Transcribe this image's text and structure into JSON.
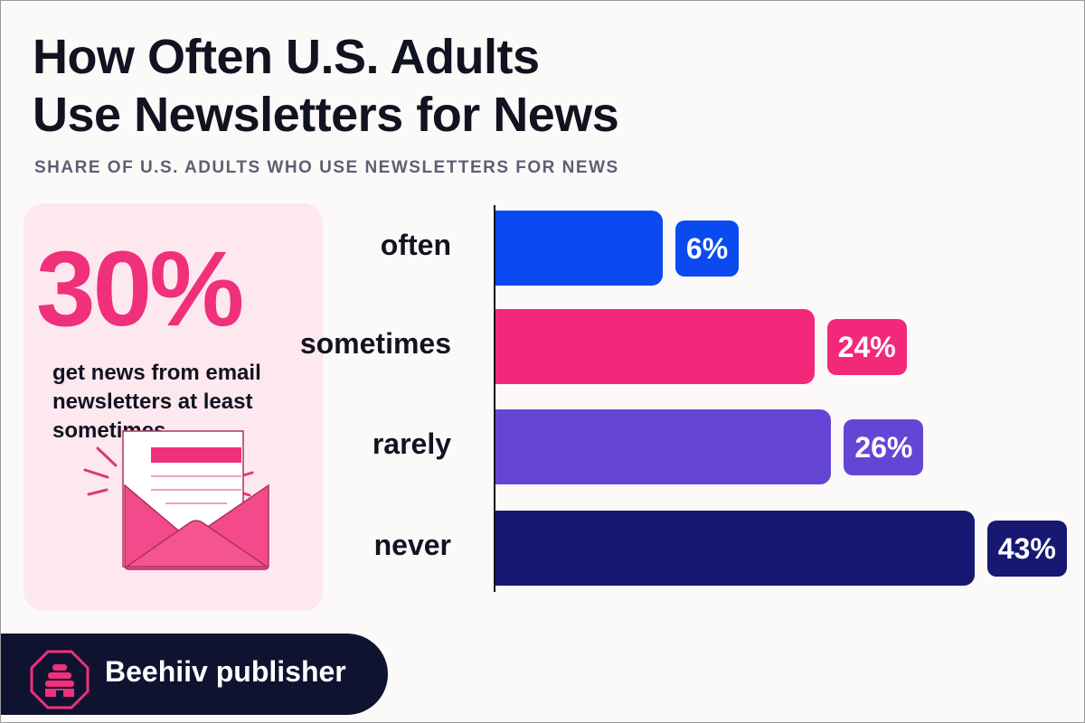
{
  "title_lines": [
    "How Often U.S. Adults",
    "Use Newsletters for News"
  ],
  "subtitle": "SHARE OF U.S. ADULTS WHO USE NEWSLETTERS FOR NEWS",
  "callout": {
    "value": "30%",
    "text": "get news from email newsletters at least sometimes.",
    "icon": "envelope-newsletter-icon"
  },
  "footer": {
    "label": "Beehiiv publisher",
    "icon": "beehive-logo-icon"
  },
  "colors": {
    "accent_pink": "#f0307a",
    "often": "#0a4af0",
    "sometimes": "#f3287a",
    "rarely": "#6546d4",
    "never": "#161872",
    "footer_bg": "#0f1330"
  },
  "chart_data": {
    "type": "bar",
    "orientation": "horizontal",
    "title": "How Often U.S. Adults Use Newsletters for News",
    "subtitle": "SHARE OF U.S. ADULTS WHO USE NEWSLETTERS FOR NEWS",
    "categories": [
      "often",
      "sometimes",
      "rarely",
      "never"
    ],
    "values": [
      6,
      24,
      26,
      43
    ],
    "labels": [
      "6%",
      "24%",
      "26%",
      "43%"
    ],
    "unit": "%",
    "grid": false,
    "legend": "none"
  }
}
